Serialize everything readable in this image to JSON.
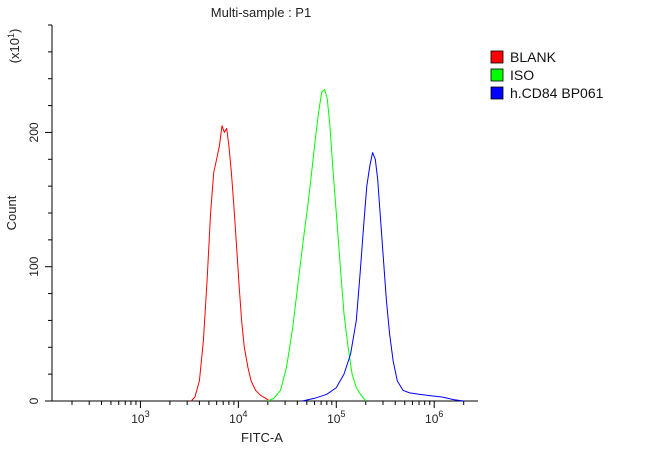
{
  "chart_data": {
    "type": "histogram",
    "title": "Multi-sample : P1",
    "xlabel": "FITC-A",
    "ylabel": "Count",
    "y_multiplier": {
      "base": "(x10",
      "exp": "1",
      "close": ")"
    },
    "x_scale": "log",
    "xlim": [
      125,
      2800000
    ],
    "ylim": [
      0,
      280
    ],
    "x_ticks": [
      {
        "value": 1000,
        "base": "10",
        "exp": "3"
      },
      {
        "value": 10000,
        "base": "10",
        "exp": "4"
      },
      {
        "value": 100000,
        "base": "10",
        "exp": "5"
      },
      {
        "value": 1000000,
        "base": "10",
        "exp": "6"
      }
    ],
    "y_ticks": [
      {
        "value": 0,
        "label": "0"
      },
      {
        "value": 100,
        "label": "100"
      },
      {
        "value": 200,
        "label": "200"
      }
    ],
    "legend_position": "top-right",
    "series": [
      {
        "name": "BLANK",
        "color": "#ff0000",
        "x": [
          3300,
          3600,
          4000,
          4400,
          4800,
          5200,
          5600,
          6000,
          6400,
          6800,
          7200,
          7600,
          8000,
          8500,
          9000,
          9600,
          10200,
          10800,
          11500,
          12500,
          13500,
          15000,
          17000,
          19000,
          21000
        ],
        "y": [
          0,
          3,
          15,
          45,
          90,
          140,
          170,
          180,
          190,
          205,
          200,
          203,
          190,
          170,
          145,
          115,
          85,
          60,
          40,
          25,
          15,
          8,
          4,
          2,
          0
        ]
      },
      {
        "name": "ISO",
        "color": "#00ff00",
        "x": [
          20000,
          23000,
          27000,
          31000,
          36000,
          41000,
          46000,
          51000,
          56000,
          61000,
          66000,
          71000,
          76000,
          81000,
          86000,
          92000,
          100000,
          110000,
          120000,
          132000,
          145000,
          160000,
          180000,
          200000
        ],
        "y": [
          0,
          2,
          8,
          25,
          55,
          90,
          120,
          145,
          170,
          195,
          215,
          230,
          232,
          225,
          205,
          175,
          140,
          100,
          65,
          40,
          20,
          10,
          4,
          0
        ]
      },
      {
        "name": "h.CD84 BP061",
        "color": "#0000ff",
        "x": [
          45000,
          60000,
          80000,
          100000,
          120000,
          140000,
          160000,
          175000,
          190000,
          205000,
          220000,
          235000,
          250000,
          265000,
          280000,
          300000,
          325000,
          350000,
          380000,
          420000,
          480000,
          560000,
          700000,
          900000,
          1200000,
          1600000,
          2000000
        ],
        "y": [
          0,
          2,
          5,
          10,
          20,
          35,
          60,
          95,
          130,
          160,
          175,
          185,
          180,
          165,
          140,
          110,
          75,
          50,
          30,
          15,
          8,
          6,
          5,
          4,
          3,
          1,
          0
        ]
      }
    ]
  }
}
